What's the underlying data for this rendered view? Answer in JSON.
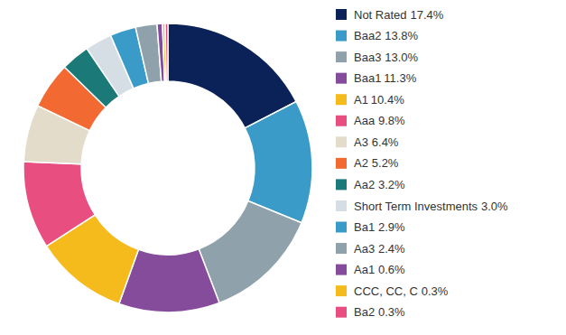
{
  "chart_data": {
    "type": "pie",
    "categories": [
      "Not Rated",
      "Baa2",
      "Baa3",
      "Baa1",
      "A1",
      "Aaa",
      "A3",
      "A2",
      "Aa2",
      "Short Term Investments",
      "Ba1",
      "Aa3",
      "Aa1",
      "CCC, CC, C",
      "Ba2"
    ],
    "values": [
      17.4,
      13.8,
      13.0,
      11.3,
      10.4,
      9.8,
      6.4,
      5.2,
      3.2,
      3.0,
      2.9,
      2.4,
      0.6,
      0.3,
      0.3
    ],
    "value_labels": [
      "17.4%",
      "13.8%",
      "13.0%",
      "11.3%",
      "10.4%",
      "9.8%",
      "6.4%",
      "5.2%",
      "3.2%",
      "3.0%",
      "2.9%",
      "2.4%",
      "0.6%",
      "0.3%",
      "0.3%"
    ],
    "colors": [
      "#0b2259",
      "#3a9bc8",
      "#8fa2ab",
      "#854c9b",
      "#f5bb1c",
      "#e84e7f",
      "#e4dccb",
      "#f26a32",
      "#1b7a77",
      "#d4dee4",
      "#3a9bc8",
      "#8fa2ab",
      "#854c9b",
      "#f5bb1c",
      "#e84e7f"
    ],
    "legend": "right"
  }
}
